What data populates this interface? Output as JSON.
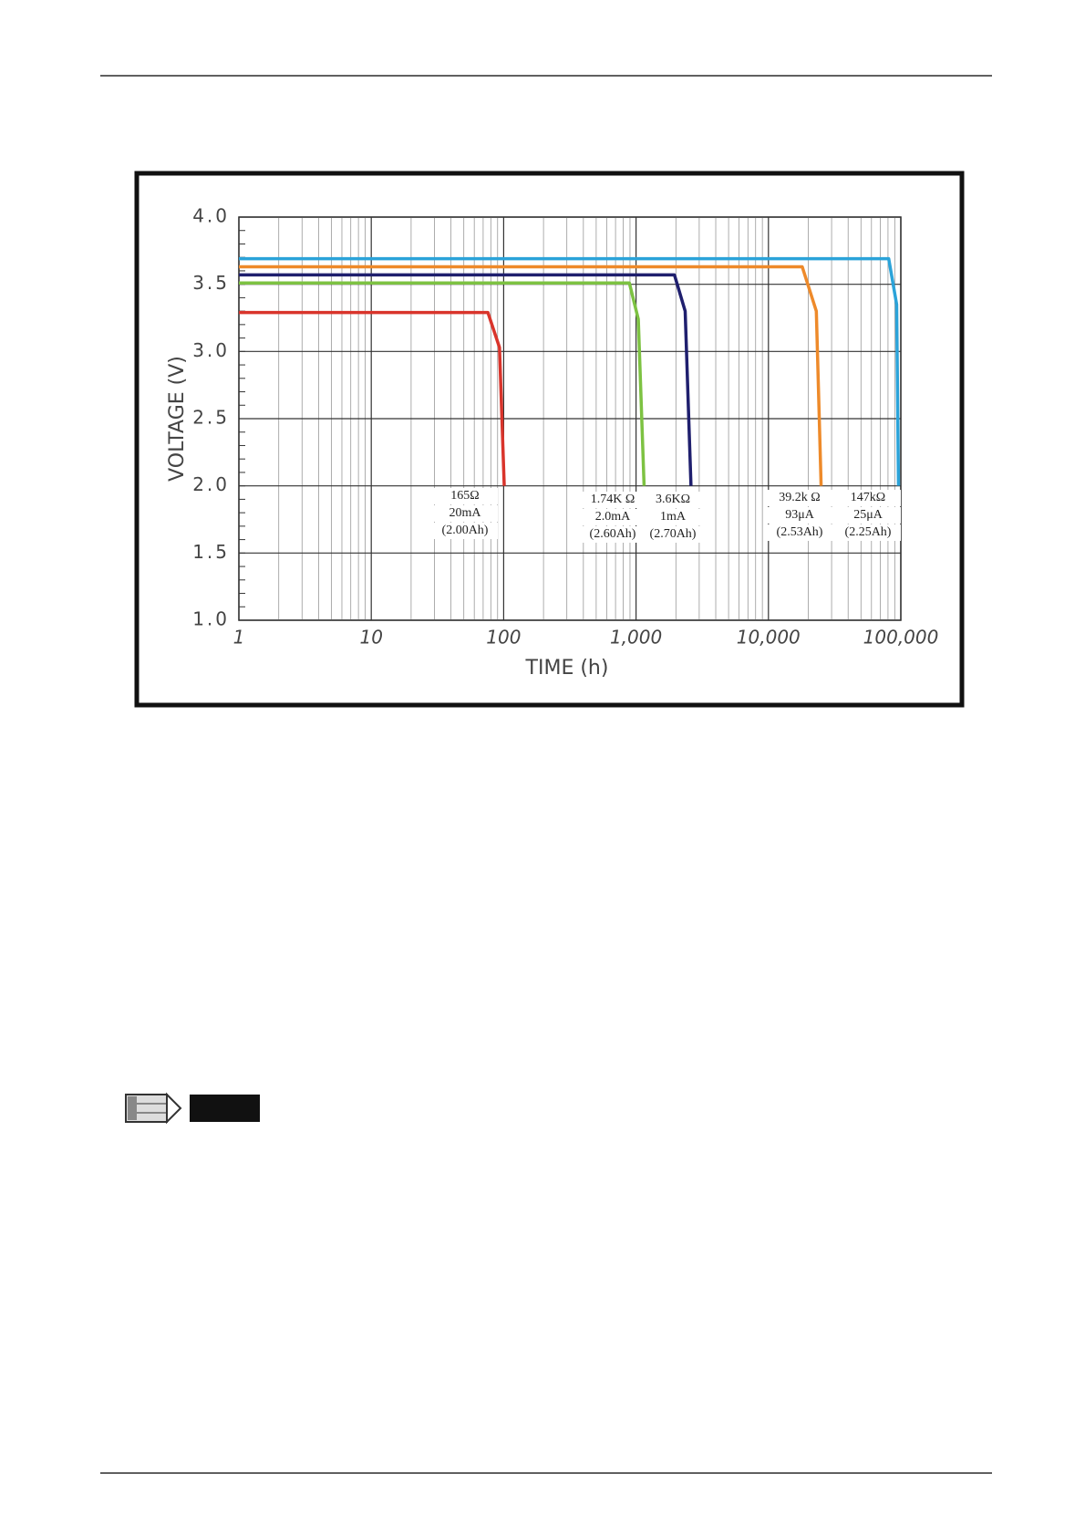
{
  "chart_data": {
    "type": "line",
    "x_label": "TIME (h)",
    "y_label": "VOLTAGE (V)",
    "x_scale": "log",
    "grid": true,
    "xlim": [
      1,
      100000
    ],
    "xticks": [
      1,
      10,
      100,
      {
        "value": 1000,
        "label": "1,000"
      },
      {
        "value": 10000,
        "label": "10,000"
      },
      {
        "value": 100000,
        "label": "100,000"
      }
    ],
    "ylim": [
      1,
      4
    ],
    "yticks": [
      {
        "value": 1,
        "label": "1.0"
      },
      1.5,
      {
        "value": 2,
        "label": "2.0"
      },
      2.5,
      {
        "value": 3,
        "label": "3.0"
      },
      3.5,
      {
        "value": 4,
        "label": "4.0"
      }
    ],
    "series": [
      {
        "color": "#d9342b",
        "x": [
          1,
          76,
          93,
          101
        ],
        "values": [
          3.29,
          3.29,
          3.03,
          2.0
        ]
      },
      {
        "color": "#7dc242",
        "x": [
          1,
          890,
          1040,
          1150
        ],
        "values": [
          3.51,
          3.51,
          3.24,
          2.0
        ]
      },
      {
        "color": "#1f1f6e",
        "x": [
          1,
          1950,
          2350,
          2600
        ],
        "values": [
          3.57,
          3.57,
          3.3,
          2.0
        ]
      },
      {
        "color": "#ee8a2a",
        "x": [
          1,
          18000,
          23000,
          25000
        ],
        "values": [
          3.63,
          3.63,
          3.3,
          2.0
        ]
      },
      {
        "color": "#2ba3d9",
        "x": [
          1,
          81000,
          93000,
          96000
        ],
        "values": [
          3.69,
          3.69,
          3.35,
          2.0
        ]
      }
    ],
    "annotations": [
      {
        "lines": [
          "165Ω",
          "20mA",
          "(2.00Ah)"
        ]
      },
      {
        "lines": [
          "1.74K Ω",
          "2.0mA",
          "(2.60Ah)"
        ]
      },
      {
        "lines": [
          "3.6KΩ",
          "1mA",
          "(2.70Ah)"
        ]
      },
      {
        "lines": [
          "39.2k Ω",
          "93μA",
          "(2.53Ah)"
        ]
      },
      {
        "lines": [
          "147kΩ",
          "25μA",
          "(2.25Ah)"
        ]
      }
    ]
  }
}
